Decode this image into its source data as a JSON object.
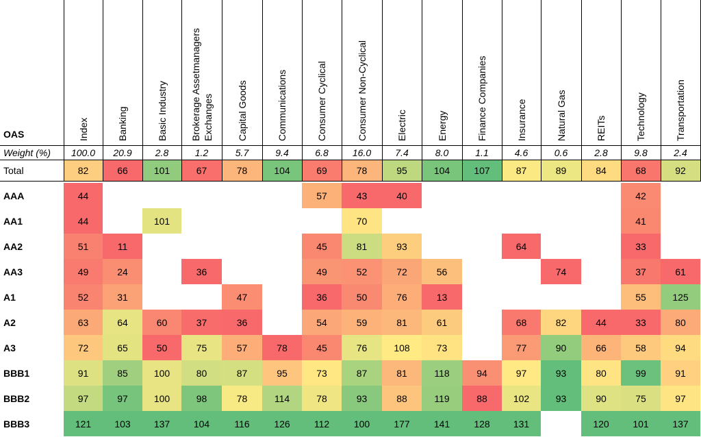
{
  "chart_data": {
    "type": "heatmap",
    "title": "",
    "corner_label": "OAS",
    "weight_label": "Weight (%)",
    "columns": [
      "Index",
      "Banking",
      "Basic Industry",
      "Brokerage Assetmanagers Exchanges",
      "Capital Goods",
      "Communications",
      "Consumer Cyclical",
      "Consumer Non-Cyclical",
      "Electric",
      "Energy",
      "Finance Companies",
      "Insurance",
      "Natural Gas",
      "REITs",
      "Technology",
      "Transportation"
    ],
    "column_lines": [
      [
        "Index"
      ],
      [
        "Banking"
      ],
      [
        "Basic Industry"
      ],
      [
        "Brokerage Assetmanagers",
        "Exchanges"
      ],
      [
        "Capital Goods"
      ],
      [
        "Communications"
      ],
      [
        "Consumer Cyclical"
      ],
      [
        "Consumer Non-Cyclical"
      ],
      [
        "Electric"
      ],
      [
        "Energy"
      ],
      [
        "Finance Companies"
      ],
      [
        "Insurance"
      ],
      [
        "Natural Gas"
      ],
      [
        "REITs"
      ],
      [
        "Technology"
      ],
      [
        "Transportation"
      ]
    ],
    "weights": [
      "100.0",
      "20.9",
      "2.8",
      "1.2",
      "5.7",
      "9.4",
      "6.8",
      "16.0",
      "7.4",
      "8.0",
      "1.1",
      "4.6",
      "0.6",
      "2.8",
      "9.8",
      "2.4"
    ],
    "total_label": "Total",
    "total": [
      82,
      66,
      101,
      67,
      78,
      104,
      69,
      78,
      95,
      104,
      107,
      87,
      89,
      84,
      68,
      92
    ],
    "rows": [
      {
        "label": "AAA",
        "values": [
          44,
          null,
          null,
          null,
          null,
          null,
          57,
          43,
          40,
          null,
          null,
          null,
          null,
          null,
          42,
          null
        ]
      },
      {
        "label": "AA1",
        "values": [
          44,
          null,
          101,
          null,
          null,
          null,
          null,
          70,
          null,
          null,
          null,
          null,
          null,
          null,
          41,
          null
        ]
      },
      {
        "label": "AA2",
        "values": [
          51,
          11,
          null,
          null,
          null,
          null,
          45,
          81,
          93,
          null,
          null,
          64,
          null,
          null,
          33,
          null
        ]
      },
      {
        "label": "AA3",
        "values": [
          49,
          24,
          null,
          36,
          null,
          null,
          49,
          52,
          72,
          56,
          null,
          null,
          74,
          null,
          37,
          61
        ]
      },
      {
        "label": "A1",
        "values": [
          52,
          31,
          null,
          null,
          47,
          null,
          36,
          50,
          76,
          13,
          null,
          null,
          null,
          null,
          55,
          125
        ]
      },
      {
        "label": "A2",
        "values": [
          63,
          64,
          60,
          37,
          36,
          null,
          54,
          59,
          81,
          61,
          null,
          68,
          82,
          44,
          33,
          80
        ]
      },
      {
        "label": "A3",
        "values": [
          72,
          65,
          50,
          75,
          57,
          78,
          45,
          76,
          108,
          73,
          null,
          77,
          90,
          66,
          58,
          94
        ]
      },
      {
        "label": "BBB1",
        "values": [
          91,
          85,
          100,
          80,
          87,
          95,
          73,
          87,
          81,
          118,
          94,
          97,
          93,
          80,
          99,
          91
        ]
      },
      {
        "label": "BBB2",
        "values": [
          97,
          97,
          100,
          98,
          78,
          114,
          78,
          93,
          88,
          119,
          88,
          102,
          93,
          90,
          75,
          97
        ]
      },
      {
        "label": "BBB3",
        "values": [
          121,
          103,
          137,
          104,
          116,
          126,
          112,
          100,
          177,
          141,
          128,
          131,
          null,
          120,
          101,
          137
        ]
      }
    ],
    "colors": {
      "low": "#f8696b",
      "mid": "#ffeb84",
      "high": "#63be7b",
      "weight_bg": "#ffffff",
      "grid": "#000000"
    },
    "color_scale": "per column, low values red, mid yellow, high values green"
  }
}
